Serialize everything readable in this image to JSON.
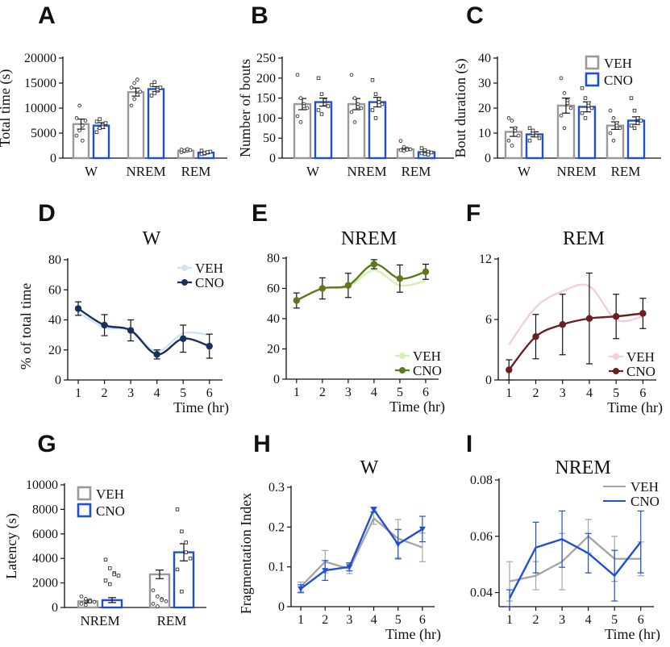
{
  "figure": {
    "background": "#ffffff"
  },
  "chart_data": [
    {
      "id": "A",
      "type": "bar",
      "panel_label": "A",
      "title": "",
      "ylabel": "Total time (s)",
      "xlabel": "",
      "categories": [
        "W",
        "NREM",
        "REM"
      ],
      "ylim": [
        0,
        20000
      ],
      "yticks": [
        0,
        5000,
        10000,
        15000,
        20000
      ],
      "series": [
        {
          "name": "VEH",
          "color": "#999999",
          "values": [
            6800,
            13200,
            1500
          ],
          "err": [
            1000,
            800,
            150
          ]
        },
        {
          "name": "CNO",
          "color": "#1f4fd6",
          "values": [
            6500,
            13800,
            1100
          ],
          "err": [
            600,
            500,
            200
          ]
        }
      ],
      "points": [
        [
          [
            4500,
            5500,
            6500,
            7500,
            8000,
            10500,
            3500
          ],
          [
            5200,
            6000,
            6500,
            7000,
            7300,
            7800,
            6200
          ]
        ],
        [
          [
            10500,
            11800,
            12700,
            13300,
            14100,
            15000,
            15700
          ],
          [
            12500,
            13000,
            13500,
            14100,
            14600,
            15200,
            13700
          ]
        ],
        [
          [
            1200,
            1400,
            1500,
            1600,
            1700,
            1500,
            1800
          ],
          [
            800,
            900,
            1100,
            1300,
            1500,
            1000,
            1200
          ]
        ]
      ]
    },
    {
      "id": "B",
      "type": "bar",
      "panel_label": "B",
      "title": "",
      "ylabel": "Number of bouts",
      "xlabel": "",
      "categories": [
        "W",
        "NREM",
        "REM"
      ],
      "ylim": [
        0,
        250
      ],
      "yticks": [
        0,
        50,
        100,
        150,
        200,
        250
      ],
      "series": [
        {
          "name": "VEH",
          "color": "#999999",
          "values": [
            135,
            135,
            22
          ],
          "err": [
            14,
            14,
            3
          ]
        },
        {
          "name": "CNO",
          "color": "#1f4fd6",
          "values": [
            140,
            140,
            15
          ],
          "err": [
            10,
            12,
            3
          ]
        }
      ],
      "points": [
        [
          [
            208,
            150,
            135,
            125,
            105,
            90,
            130
          ],
          [
            200,
            160,
            145,
            130,
            120,
            110,
            135
          ]
        ],
        [
          [
            208,
            150,
            135,
            125,
            115,
            90,
            128
          ],
          [
            195,
            160,
            148,
            135,
            120,
            100,
            140
          ]
        ],
        [
          [
            43,
            28,
            24,
            22,
            20,
            18,
            21
          ],
          [
            25,
            20,
            16,
            14,
            12,
            10,
            9
          ]
        ]
      ]
    },
    {
      "id": "C",
      "type": "bar",
      "panel_label": "C",
      "title": "",
      "ylabel": "Bout  duration (s)",
      "xlabel": "",
      "categories": [
        "W",
        "NREM",
        "REM"
      ],
      "ylim": [
        0,
        40
      ],
      "yticks": [
        0,
        10,
        20,
        30,
        40
      ],
      "legend": [
        "VEH",
        "CNO"
      ],
      "series": [
        {
          "name": "VEH",
          "color": "#999999",
          "values": [
            10.5,
            21,
            13
          ],
          "err": [
            1.8,
            3,
            1.5
          ]
        },
        {
          "name": "CNO",
          "color": "#1f4fd6",
          "values": [
            9.5,
            20.5,
            15
          ],
          "err": [
            1,
            2,
            1.5
          ]
        }
      ],
      "points": [
        [
          [
            16,
            15,
            12,
            9,
            7,
            5,
            11
          ],
          [
            12,
            10,
            9,
            8,
            7,
            11,
            9
          ]
        ],
        [
          [
            32,
            26,
            23,
            20,
            17,
            12,
            22
          ],
          [
            28,
            24,
            22,
            20,
            18,
            16,
            21
          ]
        ],
        [
          [
            19,
            16,
            14,
            12,
            10,
            7,
            13
          ],
          [
            24,
            19,
            16,
            15,
            13,
            12,
            14
          ]
        ]
      ]
    },
    {
      "id": "D",
      "type": "line",
      "panel_label": "D",
      "title": "W",
      "ylabel": "% of total time",
      "xlabel": "Time (hr)",
      "x": [
        1,
        2,
        3,
        4,
        5,
        6
      ],
      "xlim": [
        0.6,
        6.5
      ],
      "ylim": [
        0,
        80
      ],
      "yticks": [
        0,
        20,
        40,
        60,
        80
      ],
      "legend_pos": "top-right",
      "series": [
        {
          "name": "VEH",
          "color": "#cfe3f5",
          "values": [
            45,
            35,
            33,
            19,
            31,
            30
          ],
          "err": [
            0,
            0,
            0,
            0,
            0,
            0
          ],
          "markers": false
        },
        {
          "name": "CNO",
          "color": "#17305e",
          "values": [
            47.5,
            36.5,
            33,
            17,
            27.5,
            22.5
          ],
          "err": [
            4.5,
            7,
            7,
            3,
            9,
            8
          ],
          "markers": true
        }
      ]
    },
    {
      "id": "E",
      "type": "line",
      "panel_label": "E",
      "title": "NREM",
      "ylabel": "",
      "xlabel": "Time (hr)",
      "x": [
        1,
        2,
        3,
        4,
        5,
        6
      ],
      "xlim": [
        0.6,
        6.5
      ],
      "ylim": [
        0,
        80
      ],
      "yticks": [
        0,
        20,
        40,
        60,
        80
      ],
      "legend_pos": "bottom-right",
      "series": [
        {
          "name": "VEH",
          "color": "#d6f0b0",
          "values": [
            52,
            60,
            61,
            72,
            62,
            65
          ],
          "err": [
            0,
            0,
            0,
            0,
            0,
            0
          ],
          "markers": false
        },
        {
          "name": "CNO",
          "color": "#5c7a1a",
          "values": [
            52,
            60,
            62,
            76,
            66.5,
            71
          ],
          "err": [
            5,
            7,
            8,
            3,
            9,
            5
          ],
          "markers": true
        }
      ]
    },
    {
      "id": "F",
      "type": "line",
      "panel_label": "F",
      "title": "REM",
      "ylabel": "",
      "xlabel": "Time (hr)",
      "x": [
        1,
        2,
        3,
        4,
        5,
        6
      ],
      "xlim": [
        0.6,
        6.5
      ],
      "ylim": [
        0,
        12
      ],
      "yticks": [
        0,
        6,
        12
      ],
      "legend_pos": "bottom-right",
      "series": [
        {
          "name": "VEH",
          "color": "#f5cfd6",
          "values": [
            3.5,
            7.2,
            8.8,
            9.3,
            6.0,
            6.3
          ],
          "err": [
            0,
            0,
            0,
            0,
            0,
            0
          ],
          "markers": false
        },
        {
          "name": "CNO",
          "color": "#6b1f1f",
          "values": [
            1.0,
            4.3,
            5.5,
            6.1,
            6.3,
            6.6
          ],
          "err": [
            1,
            2.2,
            3,
            4.5,
            2.2,
            1.5
          ],
          "markers": true
        }
      ]
    },
    {
      "id": "G",
      "type": "bar",
      "panel_label": "G",
      "title": "",
      "ylabel": "Latency (s)",
      "xlabel": "",
      "categories": [
        "NREM",
        "REM"
      ],
      "ylim": [
        0,
        10000
      ],
      "yticks": [
        0,
        2000,
        4000,
        6000,
        8000,
        10000
      ],
      "legend": [
        "VEH",
        "CNO"
      ],
      "series": [
        {
          "name": "VEH",
          "color": "#999999",
          "values": [
            500,
            2700
          ],
          "err": [
            120,
            350
          ]
        },
        {
          "name": "CNO",
          "color": "#1f4fd6",
          "values": [
            600,
            4500
          ],
          "err": [
            200,
            700
          ]
        }
      ],
      "points": [
        [
          [
            900,
            700,
            600,
            450,
            300,
            200,
            500
          ],
          [
            3900,
            3200,
            2800,
            2600,
            2200,
            1900,
            2700
          ]
        ],
        [
          [
            1400,
            900,
            700,
            500,
            300,
            100,
            600
          ],
          [
            8000,
            6200,
            5300,
            4000,
            3100,
            1300,
            4500
          ]
        ]
      ]
    },
    {
      "id": "H",
      "type": "line",
      "panel_label": "H",
      "title": "W",
      "ylabel": "Fragmentation Index",
      "xlabel": "Time (hr)",
      "x": [
        1,
        2,
        3,
        4,
        5,
        6
      ],
      "xlim": [
        0.6,
        6.5
      ],
      "ylim": [
        0,
        0.3
      ],
      "yticks": [
        0,
        0.1,
        0.2,
        0.3
      ],
      "ytick_labels": [
        "0",
        "0.1",
        "0.2",
        "0.3"
      ],
      "legend_pos": "none",
      "series": [
        {
          "name": "VEH",
          "color": "#a3a8a3",
          "values": [
            0.05,
            0.113,
            0.095,
            0.222,
            0.171,
            0.149
          ],
          "err": [
            0.012,
            0.028,
            0.012,
            0.015,
            0.048,
            0.036
          ],
          "markers": false
        },
        {
          "name": "CNO",
          "color": "#1f4fd6",
          "values": [
            0.045,
            0.091,
            0.1,
            0.244,
            0.157,
            0.195
          ],
          "err": [
            0.01,
            0.025,
            0.01,
            0.006,
            0.037,
            0.032
          ],
          "markers": true
        }
      ]
    },
    {
      "id": "I",
      "type": "line",
      "panel_label": "I",
      "title": "NREM",
      "ylabel": "",
      "xlabel": "Time (hr)",
      "x": [
        1,
        2,
        3,
        4,
        5,
        6
      ],
      "xlim": [
        0.6,
        6.5
      ],
      "ylim": [
        0.035,
        0.08
      ],
      "yticks": [
        0.04,
        0.06,
        0.08
      ],
      "ytick_labels": [
        "0.04",
        "0.06",
        "0.08"
      ],
      "legend_pos": "top-right",
      "series": [
        {
          "name": "VEH",
          "color": "#a3a8a3",
          "values": [
            0.044,
            0.046,
            0.051,
            0.06,
            0.052,
            0.052
          ],
          "err": [
            0.007,
            0.005,
            0.01,
            0.006,
            0.008,
            0.006
          ],
          "markers": false
        },
        {
          "name": "CNO",
          "color": "#1f4fd6",
          "values": [
            0.038,
            0.056,
            0.059,
            0.054,
            0.046,
            0.058
          ],
          "err": [
            0.003,
            0.009,
            0.01,
            0.007,
            0.009,
            0.011
          ],
          "markers": false
        }
      ]
    }
  ]
}
